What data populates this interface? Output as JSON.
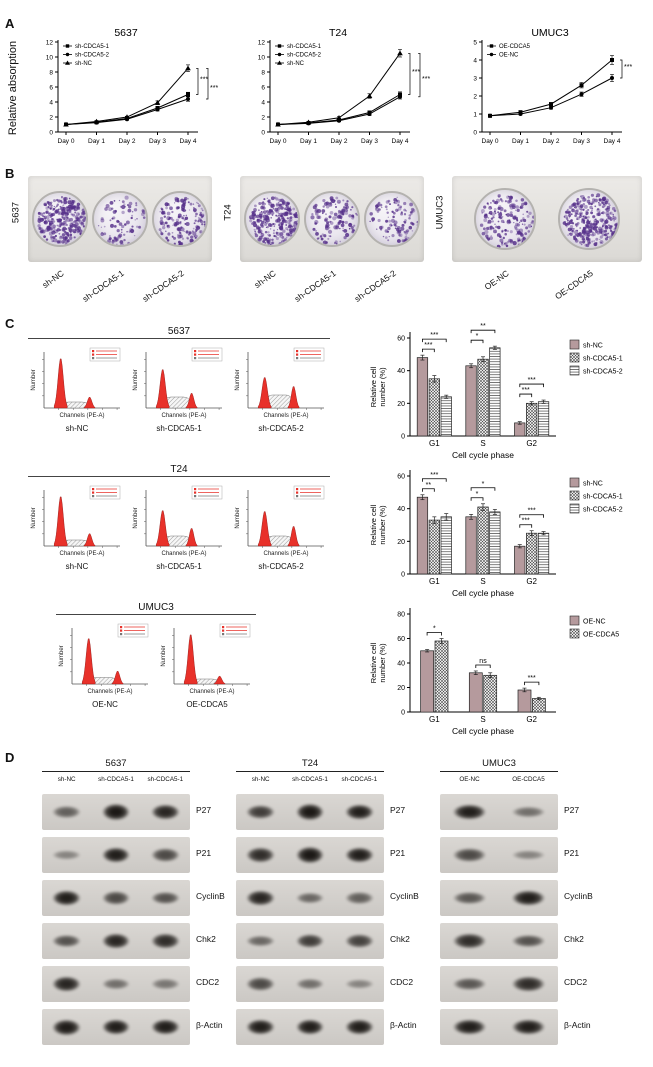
{
  "labels": {
    "A": "A",
    "B": "B",
    "C": "C",
    "D": "D"
  },
  "colors": {
    "flow_peak": "#e8312a",
    "bar_solid": "#b59a9d",
    "colony": "#56308a"
  },
  "panelA": {
    "ylabel": "Relative absorption",
    "days": [
      "Day 0",
      "Day 1",
      "Day 2",
      "Day 3",
      "Day 4"
    ],
    "charts": [
      {
        "title": "5637",
        "ymax": 12,
        "yticks": [
          0,
          2,
          4,
          6,
          8,
          10,
          12
        ],
        "series": [
          {
            "name": "sh-CDCA5-1",
            "marker": "square",
            "values": [
              1.0,
              1.3,
              1.8,
              3.2,
              5.0
            ],
            "err": [
              0.05,
              0.05,
              0.1,
              0.2,
              0.3
            ]
          },
          {
            "name": "sh-CDCA5-2",
            "marker": "circle",
            "values": [
              1.0,
              1.25,
              1.7,
              3.0,
              4.4
            ],
            "err": [
              0.05,
              0.05,
              0.1,
              0.2,
              0.3
            ]
          },
          {
            "name": "sh-NC",
            "marker": "triangle",
            "values": [
              1.0,
              1.4,
              2.0,
              3.9,
              8.5
            ],
            "err": [
              0.05,
              0.05,
              0.1,
              0.25,
              0.45
            ]
          }
        ],
        "sig": [
          {
            "a": 2,
            "b": 0,
            "label": "***"
          },
          {
            "a": 2,
            "b": 1,
            "label": "***"
          }
        ]
      },
      {
        "title": "T24",
        "ymax": 12,
        "yticks": [
          0,
          2,
          4,
          6,
          8,
          10,
          12
        ],
        "series": [
          {
            "name": "sh-CDCA5-1",
            "marker": "square",
            "values": [
              1.0,
              1.2,
              1.6,
              2.6,
              5.0
            ],
            "err": [
              0.05,
              0.05,
              0.1,
              0.2,
              0.35
            ]
          },
          {
            "name": "sh-CDCA5-2",
            "marker": "circle",
            "values": [
              1.0,
              1.15,
              1.5,
              2.4,
              4.7
            ],
            "err": [
              0.05,
              0.05,
              0.1,
              0.2,
              0.3
            ]
          },
          {
            "name": "sh-NC",
            "marker": "triangle",
            "values": [
              1.0,
              1.3,
              1.9,
              4.8,
              10.5
            ],
            "err": [
              0.05,
              0.05,
              0.15,
              0.3,
              0.5
            ]
          }
        ],
        "sig": [
          {
            "a": 2,
            "b": 0,
            "label": "***"
          },
          {
            "a": 2,
            "b": 1,
            "label": "***"
          }
        ]
      },
      {
        "title": "UMUC3",
        "ymax": 5,
        "yticks": [
          0,
          1,
          2,
          3,
          4,
          5
        ],
        "series": [
          {
            "name": "OE-CDCA5",
            "marker": "square",
            "values": [
              0.9,
              1.1,
              1.55,
              2.6,
              4.0
            ],
            "err": [
              0.03,
              0.05,
              0.08,
              0.15,
              0.25
            ]
          },
          {
            "name": "OE-NC",
            "marker": "circle",
            "values": [
              0.9,
              1.0,
              1.35,
              2.1,
              3.0
            ],
            "err": [
              0.03,
              0.05,
              0.08,
              0.12,
              0.2
            ]
          }
        ],
        "sig": [
          {
            "a": 1,
            "b": 0,
            "label": "***"
          }
        ]
      }
    ]
  },
  "panelB": {
    "groups": [
      {
        "cell": "5637",
        "wells": [
          {
            "label": "sh-NC",
            "density": 0.85
          },
          {
            "label": "sh-CDCA5-1",
            "density": 0.18
          },
          {
            "label": "sh-CDCA5-2",
            "density": 0.42
          }
        ]
      },
      {
        "cell": "T24",
        "wells": [
          {
            "label": "sh-NC",
            "density": 0.8
          },
          {
            "label": "sh-CDCA5-1",
            "density": 0.3
          },
          {
            "label": "sh-CDCA5-2",
            "density": 0.24
          }
        ]
      },
      {
        "cell": "UMUC3",
        "wells": [
          {
            "label": "OE-NC",
            "density": 0.5
          },
          {
            "label": "OE-CDCA5",
            "density": 0.95
          }
        ]
      }
    ]
  },
  "panelC": {
    "flow_ylabel": "Number",
    "flow_xlabel": "Channels (PE-A)",
    "bar_ylabel_lines": [
      "Relative cell",
      "number (%)"
    ],
    "bar_xlabel": "Cell cycle phase",
    "categories": [
      "G1",
      "S",
      "G2"
    ],
    "rows": [
      {
        "title": "5637",
        "flows": [
          {
            "label": "sh-NC",
            "g1": 1.0,
            "s": 0.12,
            "g2": 0.22
          },
          {
            "label": "sh-CDCA5-1",
            "g1": 0.78,
            "s": 0.22,
            "g2": 0.3
          },
          {
            "label": "sh-CDCA5-2",
            "g1": 0.62,
            "s": 0.26,
            "g2": 0.44
          }
        ],
        "bars": {
          "ymax": 60,
          "yticks": [
            0,
            20,
            40,
            60
          ],
          "series": [
            {
              "name": "sh-NC",
              "values": [
                48,
                43,
                8
              ],
              "err": [
                1.5,
                1.2,
                0.8
              ]
            },
            {
              "name": "sh-CDCA5-1",
              "values": [
                35,
                47,
                20
              ],
              "err": [
                2,
                1.5,
                1
              ]
            },
            {
              "name": "sh-CDCA5-2",
              "values": [
                24,
                54,
                21
              ],
              "err": [
                1,
                1,
                1
              ]
            }
          ],
          "sig": [
            [
              [
                0,
                1,
                "***"
              ],
              [
                0,
                2,
                "***"
              ]
            ],
            [
              [
                0,
                1,
                "*"
              ],
              [
                0,
                2,
                "**"
              ]
            ],
            [
              [
                0,
                1,
                "***"
              ],
              [
                0,
                2,
                "***"
              ]
            ]
          ]
        }
      },
      {
        "title": "T24",
        "flows": [
          {
            "label": "sh-NC",
            "g1": 1.0,
            "s": 0.12,
            "g2": 0.25
          },
          {
            "label": "sh-CDCA5-1",
            "g1": 0.72,
            "s": 0.2,
            "g2": 0.36
          },
          {
            "label": "sh-CDCA5-2",
            "g1": 0.7,
            "s": 0.2,
            "g2": 0.4
          }
        ],
        "bars": {
          "ymax": 60,
          "yticks": [
            0,
            20,
            40,
            60
          ],
          "series": [
            {
              "name": "sh-NC",
              "values": [
                47,
                35,
                17
              ],
              "err": [
                1.5,
                1.5,
                1
              ]
            },
            {
              "name": "sh-CDCA5-1",
              "values": [
                33,
                41,
                25
              ],
              "err": [
                2,
                2,
                1.5
              ]
            },
            {
              "name": "sh-CDCA5-2",
              "values": [
                35,
                38,
                25
              ],
              "err": [
                2,
                1.5,
                1
              ]
            }
          ],
          "sig": [
            [
              [
                0,
                1,
                "**"
              ],
              [
                0,
                2,
                "***"
              ]
            ],
            [
              [
                0,
                1,
                "*"
              ],
              [
                0,
                2,
                "*"
              ]
            ],
            [
              [
                0,
                1,
                "***"
              ],
              [
                0,
                2,
                "***"
              ]
            ]
          ]
        }
      },
      {
        "title": "UMUC3",
        "flows": [
          {
            "label": "OE-NC",
            "g1": 0.92,
            "s": 0.13,
            "g2": 0.26
          },
          {
            "label": "OE-CDCA5",
            "g1": 1.0,
            "s": 0.1,
            "g2": 0.16
          }
        ],
        "bars": {
          "ymax": 80,
          "yticks": [
            0,
            20,
            40,
            60,
            80
          ],
          "series": [
            {
              "name": "OE-NC",
              "values": [
                50,
                32,
                18
              ],
              "err": [
                1,
                1.5,
                1.5
              ]
            },
            {
              "name": "OE-CDCA5",
              "values": [
                58,
                30,
                11
              ],
              "err": [
                2,
                2,
                1
              ]
            }
          ],
          "sig": [
            [
              [
                0,
                1,
                "*"
              ]
            ],
            [
              [
                0,
                1,
                "ns"
              ]
            ],
            [
              [
                0,
                1,
                "***"
              ]
            ]
          ]
        }
      }
    ]
  },
  "panelD": {
    "proteins": [
      "P27",
      "P21",
      "CyclinB",
      "Chk2",
      "CDC2",
      "β-Actin"
    ],
    "groups": [
      {
        "cell": "5637",
        "lanes": [
          "sh-NC",
          "sh-CDCA5-1",
          "sh-CDCA5-1"
        ],
        "bands": [
          [
            0.45,
            0.95,
            0.85
          ],
          [
            0.2,
            0.9,
            0.6
          ],
          [
            0.9,
            0.6,
            0.55
          ],
          [
            0.55,
            0.85,
            0.8
          ],
          [
            0.85,
            0.35,
            0.3
          ],
          [
            0.92,
            0.9,
            0.9
          ]
        ]
      },
      {
        "cell": "T24",
        "lanes": [
          "sh-NC",
          "sh-CDCA5-1",
          "sh-CDCA5-1"
        ],
        "bands": [
          [
            0.7,
            0.95,
            0.9
          ],
          [
            0.8,
            0.95,
            0.9
          ],
          [
            0.85,
            0.4,
            0.45
          ],
          [
            0.4,
            0.7,
            0.65
          ],
          [
            0.6,
            0.35,
            0.2
          ],
          [
            0.9,
            0.9,
            0.9
          ]
        ]
      },
      {
        "cell": "UMUC3",
        "lanes": [
          "OE-NC",
          "OE-CDCA5"
        ],
        "bands": [
          [
            0.9,
            0.35
          ],
          [
            0.6,
            0.2
          ],
          [
            0.5,
            0.9
          ],
          [
            0.8,
            0.55
          ],
          [
            0.5,
            0.8
          ],
          [
            0.9,
            0.9
          ]
        ]
      }
    ]
  }
}
